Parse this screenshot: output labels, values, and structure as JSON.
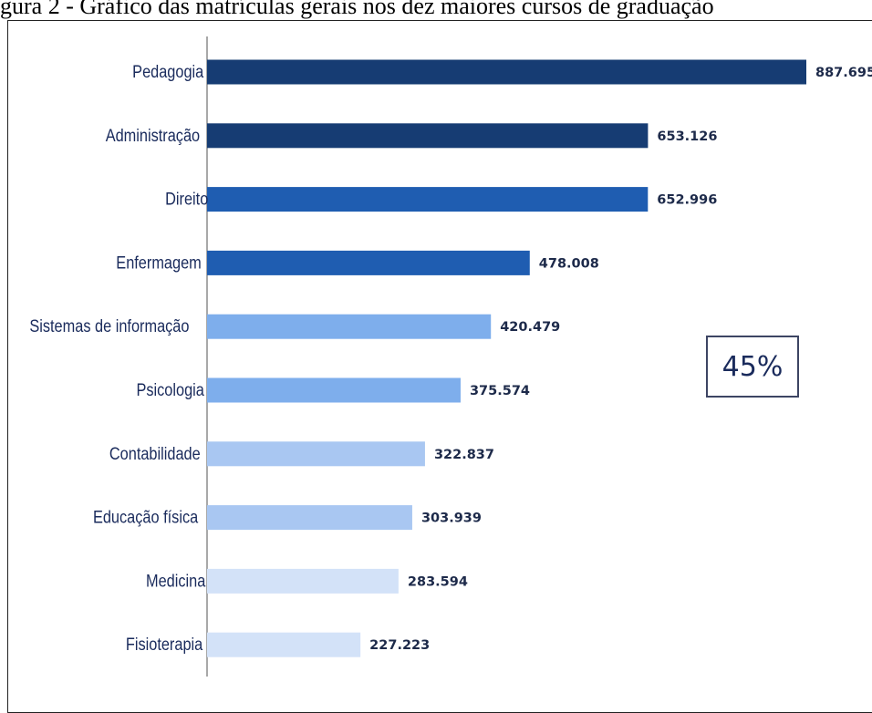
{
  "caption": "gura 2 - Gráfico das matrículas gerais nos dez maiores cursos de graduação",
  "callout": "45%",
  "chart_data": {
    "type": "bar",
    "orientation": "horizontal",
    "title": "",
    "xlabel": "",
    "ylabel": "",
    "grid": false,
    "categories": [
      "Pedagogia",
      "Administração",
      "Direito",
      "Enfermagem",
      "Sistemas de informação",
      "Psicologia",
      "Contabilidade",
      "Educação física",
      "Medicina",
      "Fisioterapia"
    ],
    "values": [
      887695,
      653126,
      652996,
      478008,
      420479,
      375574,
      322837,
      303939,
      283594,
      227223
    ],
    "value_labels": [
      "887.695",
      "653.126",
      "652.996",
      "478.008",
      "420.479",
      "375.574",
      "322.837",
      "303.939",
      "283.594",
      "227.223"
    ],
    "bar_colors": [
      "#163c73",
      "#163c73",
      "#1f5db1",
      "#1f5db1",
      "#7eaeec",
      "#7eaeec",
      "#a9c7f2",
      "#a9c7f2",
      "#d3e2f8",
      "#d3e2f8"
    ],
    "xlim": [
      0,
      887695
    ]
  }
}
